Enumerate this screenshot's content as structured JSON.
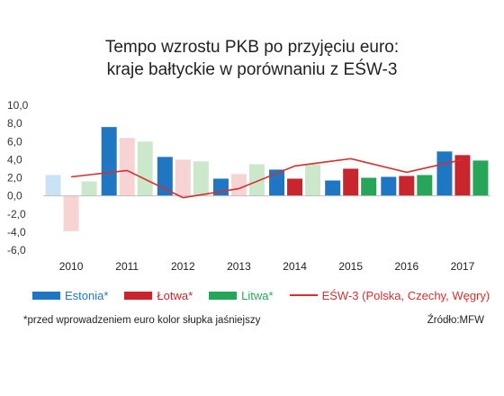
{
  "title_lines": [
    "Tempo wzrostu PKB po przyjęciu euro:",
    "kraje bałtyckie w porównaniu z EŚW-3"
  ],
  "footnote": "*przed wprowadzeniem euro kolor słupka jaśniejszy",
  "source": "Źródło:MFW",
  "colors": {
    "estonia": "#1f77c3",
    "estonia_light": "#c9e2f5",
    "lotwa": "#c8262c",
    "lotwa_light": "#f8d3d3",
    "litwa": "#27a65a",
    "litwa_light": "#cbe8ca",
    "esw3": "#d62f2f"
  },
  "chart_data": {
    "type": "bar",
    "categories": [
      "2010",
      "2011",
      "2012",
      "2013",
      "2014",
      "2015",
      "2016",
      "2017"
    ],
    "ylim": [
      -6,
      10
    ],
    "yticks": [
      "10,0",
      "8,0",
      "6,0",
      "4,0",
      "2,0",
      "0,0",
      "-2,0",
      "-4,0",
      "-6,0"
    ],
    "series": [
      {
        "name": "Estonia*",
        "key": "estonia",
        "values": [
          2.3,
          7.6,
          4.3,
          1.9,
          2.9,
          1.7,
          2.1,
          4.9
        ],
        "pre_euro": [
          true,
          false,
          false,
          false,
          false,
          false,
          false,
          false
        ]
      },
      {
        "name": "Łotwa*",
        "key": "lotwa",
        "values": [
          -3.9,
          6.4,
          4.0,
          2.4,
          1.9,
          3.0,
          2.2,
          4.5
        ],
        "pre_euro": [
          true,
          true,
          true,
          true,
          false,
          false,
          false,
          false
        ]
      },
      {
        "name": "Litwa*",
        "key": "litwa",
        "values": [
          1.6,
          6.0,
          3.8,
          3.5,
          3.5,
          2.0,
          2.3,
          3.9
        ],
        "pre_euro": [
          true,
          true,
          true,
          true,
          true,
          false,
          false,
          false
        ]
      }
    ],
    "line_series": {
      "name": "EŚW-3 (Polska, Czechy, Węgry)",
      "key": "esw3",
      "values": [
        2.1,
        2.8,
        -0.2,
        0.8,
        3.3,
        4.1,
        2.6,
        4.0
      ]
    }
  }
}
